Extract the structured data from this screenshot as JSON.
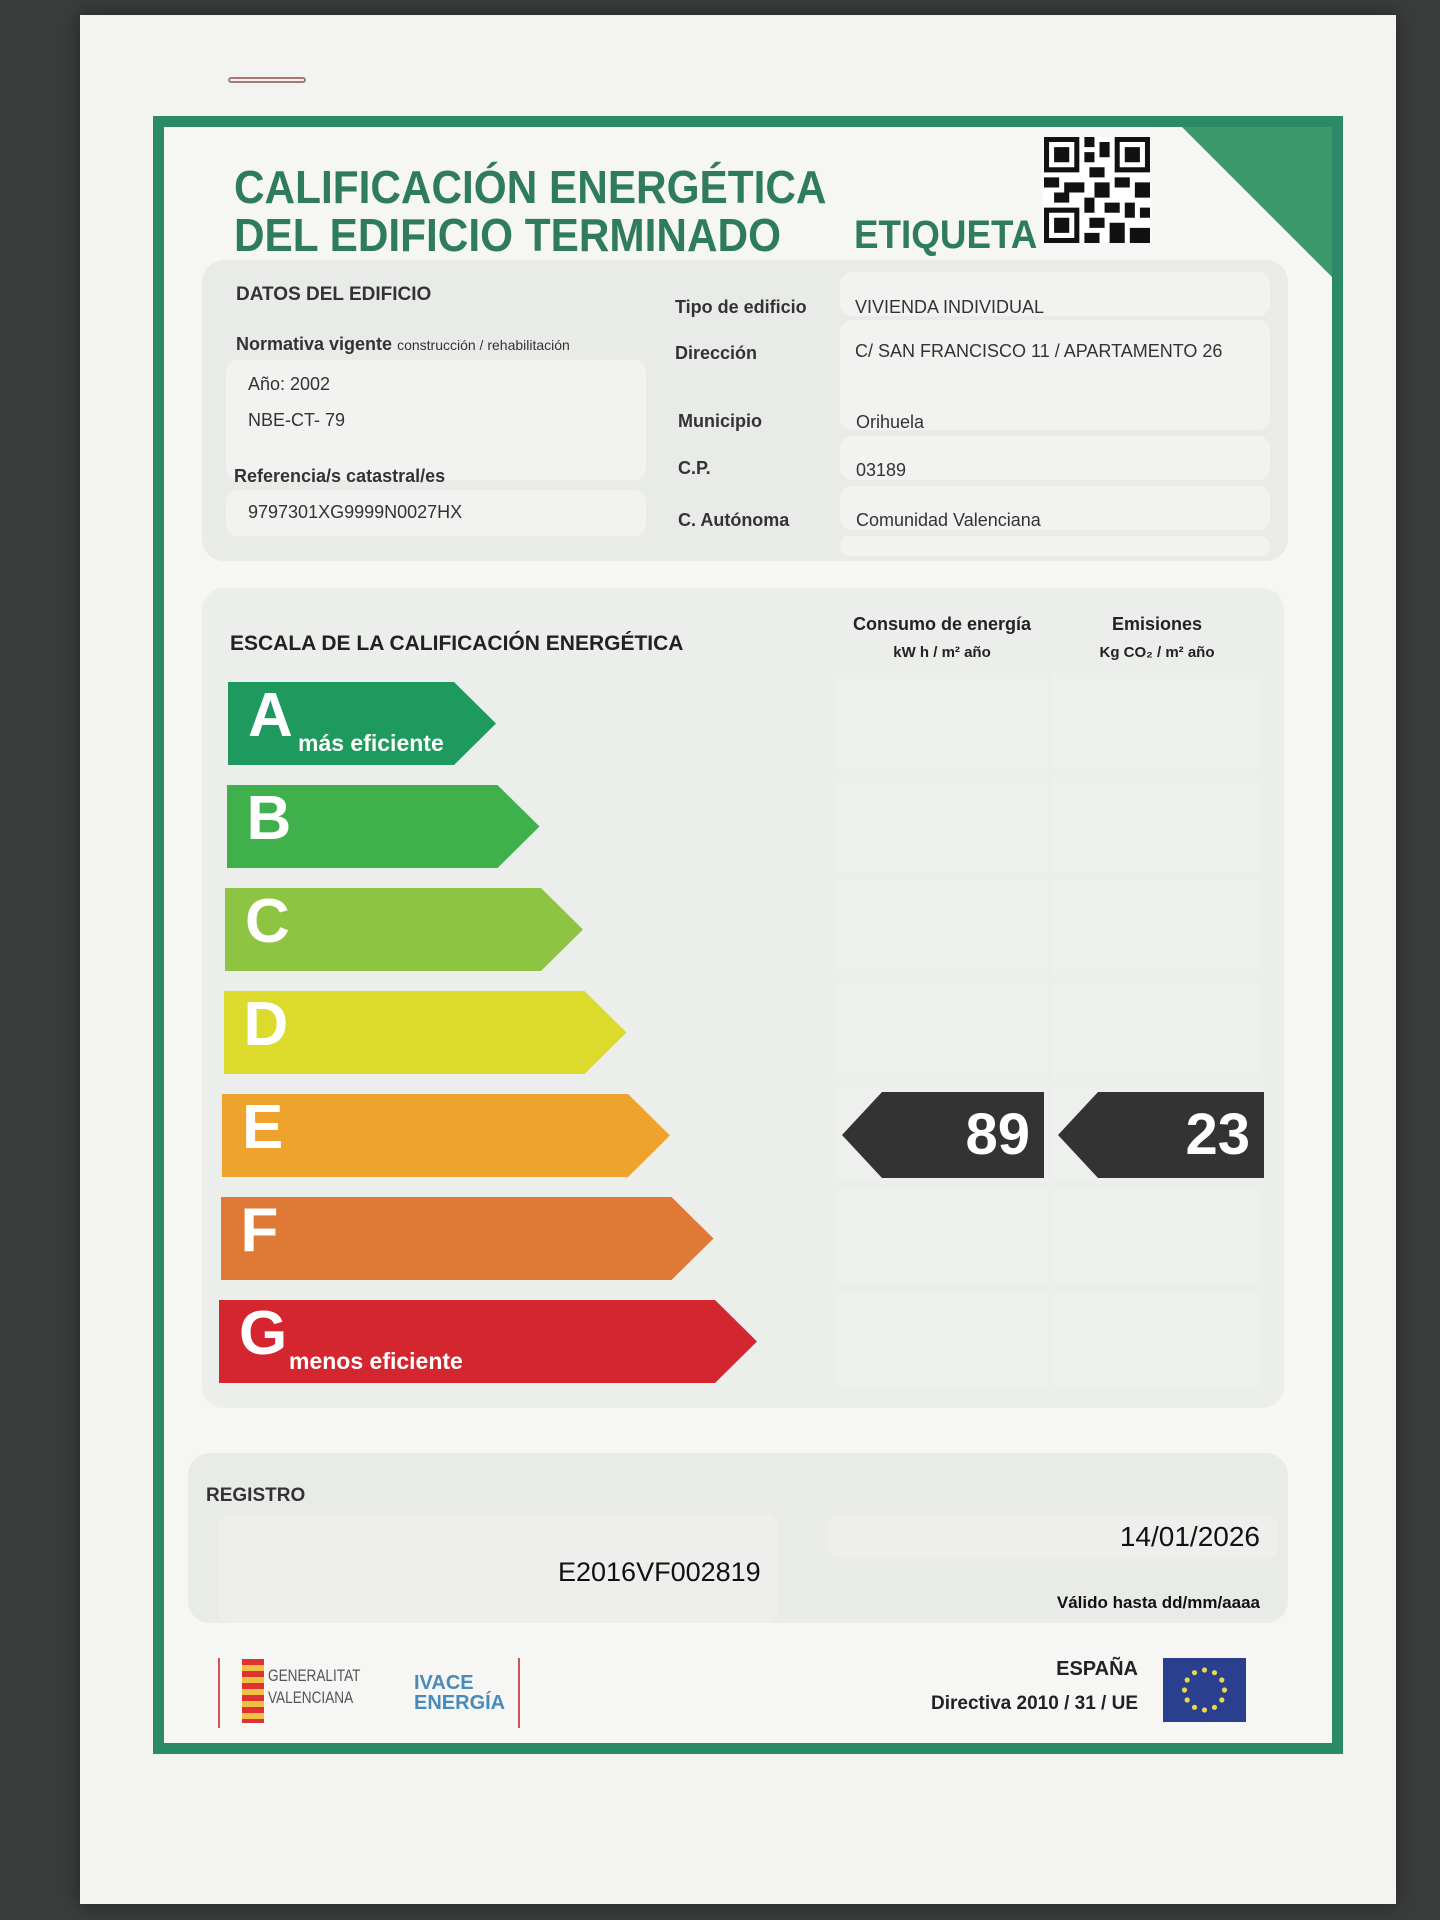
{
  "title": {
    "line1": "CALIFICACIÓN ENERGÉTICA",
    "line2": "DEL EDIFICIO  TERMINADO",
    "label": "ETIQUETA"
  },
  "datos": {
    "heading": "DATOS DEL EDIFICIO",
    "normativa_label": "Normativa vigente",
    "normativa_sub": "construcción / rehabilitación",
    "anio": "Año: 2002",
    "norma": "NBE-CT- 79",
    "ref_label": "Referencia/s catastral/es",
    "ref_value": "9797301XG9999N0027HX",
    "fields": [
      {
        "label": "Tipo de edificio",
        "value": "VIVIENDA INDIVIDUAL"
      },
      {
        "label": "Dirección",
        "value": "C/ SAN FRANCISCO 11 / APARTAMENTO 26"
      },
      {
        "label": "Municipio",
        "value": "Orihuela"
      },
      {
        "label": "C.P.",
        "value": "03189"
      },
      {
        "label": "C. Autónoma",
        "value": "Comunidad Valenciana"
      }
    ]
  },
  "escala": {
    "heading": "ESCALA DE LA CALIFICACIÓN ENERGÉTICA",
    "col1": "Consumo de energía",
    "col1_unit": "kW h / m² año",
    "col2": "Emisiones",
    "col2_unit": "Kg CO₂ / m²  año",
    "classes": [
      {
        "letter": "A",
        "sub": "más eficiente",
        "color": "#1f9a5e"
      },
      {
        "letter": "B",
        "sub": "",
        "color": "#3fb04c"
      },
      {
        "letter": "C",
        "sub": "",
        "color": "#8dc441"
      },
      {
        "letter": "D",
        "sub": "",
        "color": "#dcdb2c"
      },
      {
        "letter": "E",
        "sub": "",
        "color": "#eea32f"
      },
      {
        "letter": "F",
        "sub": "",
        "color": "#df7a36"
      },
      {
        "letter": "G",
        "sub": "menos eficiente",
        "color": "#d3262f"
      }
    ],
    "rating_class": "E",
    "consumo": "89",
    "emisiones": "23"
  },
  "registro": {
    "heading": "REGISTRO",
    "number": "E2016VF002819",
    "date": "14/01/2026",
    "valid_label": "Válido hasta dd/mm/aaaa"
  },
  "footer": {
    "logo1": "GENERALITAT VALENCIANA",
    "logo2": "IVACE ENERGÍA",
    "country": "ESPAÑA",
    "directive": "Directiva 2010 / 31 / UE"
  },
  "colors": {
    "frame": "#2d8a68",
    "title": "#2f7b5e",
    "value_arrow": "#333333"
  }
}
